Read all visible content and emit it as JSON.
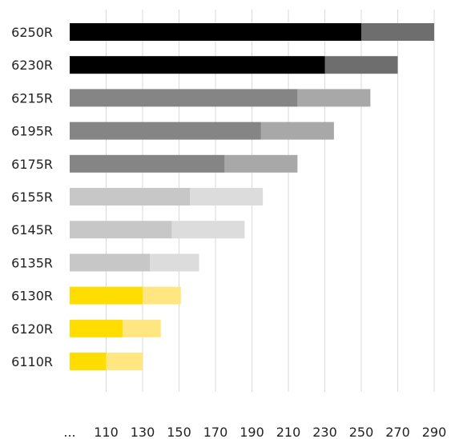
{
  "chart_data": {
    "type": "bar",
    "orientation": "horizontal",
    "stacked": true,
    "title": "",
    "xlabel": "",
    "ylabel": "",
    "grid": true,
    "xlim": [
      90,
      290
    ],
    "x_ticks": [
      "...",
      "110",
      "130",
      "150",
      "170",
      "190",
      "210",
      "230",
      "250",
      "270",
      "290"
    ],
    "tick_values": [
      90,
      110,
      130,
      150,
      170,
      190,
      210,
      230,
      250,
      270,
      290
    ],
    "categories": [
      "6250R",
      "6230R",
      "6215R",
      "6195R",
      "6175R",
      "6155R",
      "6145R",
      "6135R",
      "6130R",
      "6120R",
      "6110R"
    ],
    "rows": [
      {
        "category": "6250R",
        "base": 250,
        "boost": 290,
        "base_color": "#000000",
        "boost_color": "#6e6e6e"
      },
      {
        "category": "6230R",
        "base": 230,
        "boost": 270,
        "base_color": "#000000",
        "boost_color": "#6e6e6e"
      },
      {
        "category": "6215R",
        "base": 215,
        "boost": 255,
        "base_color": "#858585",
        "boost_color": "#a8a8a8"
      },
      {
        "category": "6195R",
        "base": 195,
        "boost": 235,
        "base_color": "#858585",
        "boost_color": "#a8a8a8"
      },
      {
        "category": "6175R",
        "base": 175,
        "boost": 215,
        "base_color": "#858585",
        "boost_color": "#a8a8a8"
      },
      {
        "category": "6155R",
        "base": 156,
        "boost": 196,
        "base_color": "#c7c7c7",
        "boost_color": "#dcdcdc"
      },
      {
        "category": "6145R",
        "base": 146,
        "boost": 186,
        "base_color": "#c7c7c7",
        "boost_color": "#dcdcdc"
      },
      {
        "category": "6135R",
        "base": 134,
        "boost": 161,
        "base_color": "#c7c7c7",
        "boost_color": "#dcdcdc"
      },
      {
        "category": "6130R",
        "base": 130,
        "boost": 151,
        "base_color": "#ffdd00",
        "boost_color": "#ffe680"
      },
      {
        "category": "6120R",
        "base": 119,
        "boost": 140,
        "base_color": "#ffdd00",
        "boost_color": "#ffe680"
      },
      {
        "category": "6110R",
        "base": 110,
        "boost": 130,
        "base_color": "#ffdd00",
        "boost_color": "#ffe680"
      }
    ]
  }
}
